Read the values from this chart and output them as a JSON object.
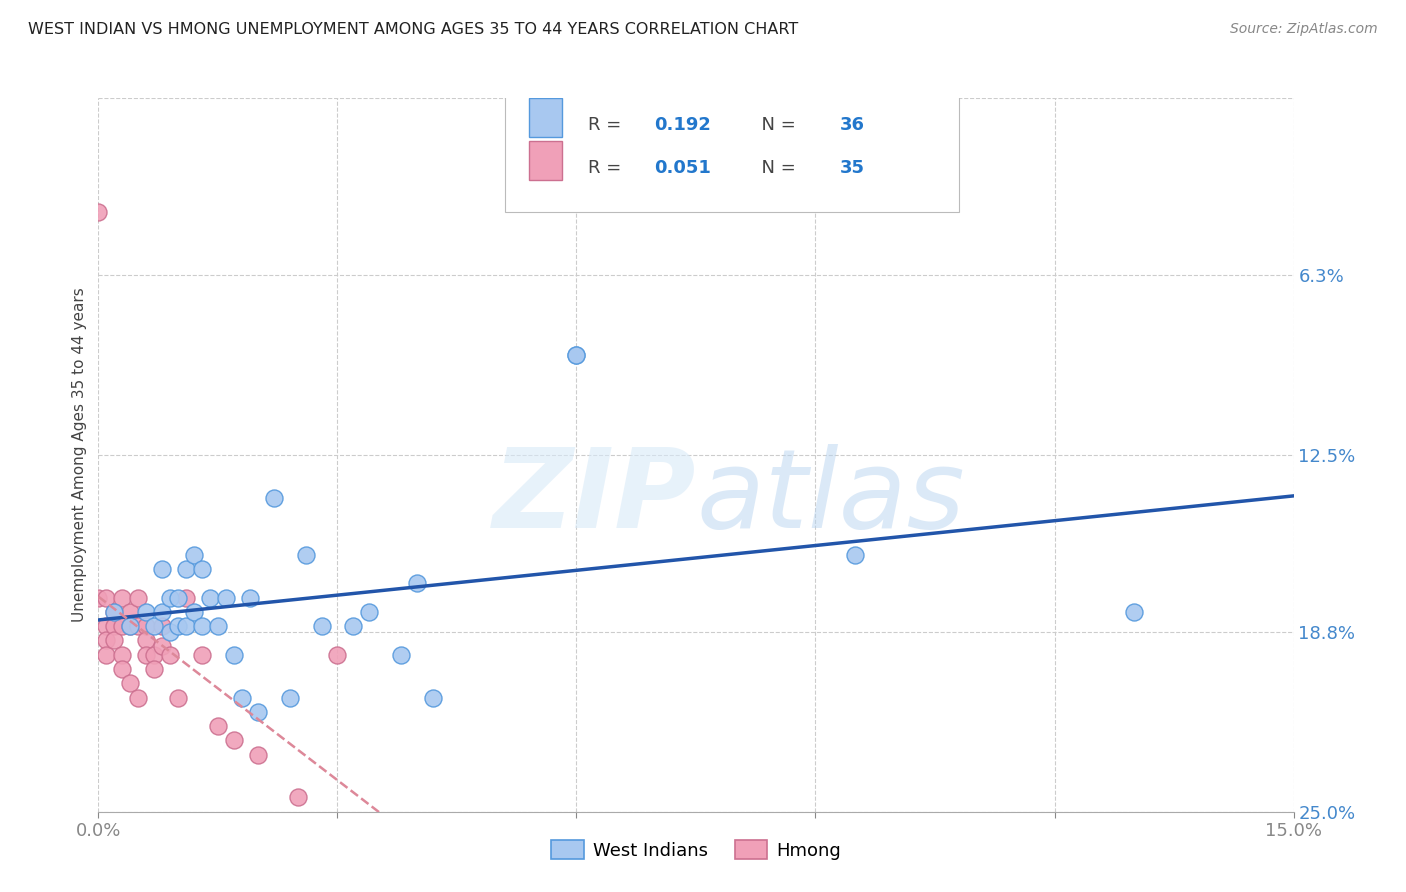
{
  "title": "WEST INDIAN VS HMONG UNEMPLOYMENT AMONG AGES 35 TO 44 YEARS CORRELATION CHART",
  "source": "Source: ZipAtlas.com",
  "ylabel": "Unemployment Among Ages 35 to 44 years",
  "xlim": [
    0.0,
    0.15
  ],
  "ylim": [
    0.0,
    0.25
  ],
  "color_west_indian": "#a8c8f0",
  "color_west_indian_edge": "#5599dd",
  "color_hmong": "#f0a0b8",
  "color_hmong_edge": "#cc7090",
  "color_line_west_indian": "#2255aa",
  "color_line_hmong": "#dd8899",
  "watermark_zip": "ZIP",
  "watermark_atlas": "atlas",
  "west_indian_x": [
    0.002,
    0.004,
    0.006,
    0.007,
    0.008,
    0.008,
    0.009,
    0.009,
    0.01,
    0.01,
    0.011,
    0.011,
    0.012,
    0.012,
    0.013,
    0.013,
    0.014,
    0.015,
    0.016,
    0.017,
    0.018,
    0.019,
    0.02,
    0.022,
    0.024,
    0.026,
    0.028,
    0.032,
    0.034,
    0.038,
    0.04,
    0.042,
    0.06,
    0.06,
    0.095,
    0.13
  ],
  "west_indian_y": [
    0.07,
    0.065,
    0.07,
    0.065,
    0.07,
    0.085,
    0.063,
    0.075,
    0.065,
    0.075,
    0.065,
    0.085,
    0.07,
    0.09,
    0.065,
    0.085,
    0.075,
    0.065,
    0.075,
    0.055,
    0.04,
    0.075,
    0.035,
    0.11,
    0.04,
    0.09,
    0.065,
    0.065,
    0.07,
    0.055,
    0.08,
    0.04,
    0.16,
    0.16,
    0.09,
    0.07
  ],
  "hmong_x": [
    0.0,
    0.0,
    0.001,
    0.001,
    0.001,
    0.001,
    0.002,
    0.002,
    0.002,
    0.003,
    0.003,
    0.003,
    0.003,
    0.004,
    0.004,
    0.004,
    0.005,
    0.005,
    0.005,
    0.006,
    0.006,
    0.006,
    0.007,
    0.007,
    0.008,
    0.008,
    0.009,
    0.01,
    0.011,
    0.013,
    0.015,
    0.017,
    0.02,
    0.025,
    0.03
  ],
  "hmong_y": [
    0.21,
    0.075,
    0.075,
    0.065,
    0.06,
    0.055,
    0.07,
    0.065,
    0.06,
    0.075,
    0.065,
    0.055,
    0.05,
    0.07,
    0.065,
    0.045,
    0.075,
    0.065,
    0.04,
    0.065,
    0.06,
    0.055,
    0.055,
    0.05,
    0.065,
    0.058,
    0.055,
    0.04,
    0.075,
    0.055,
    0.03,
    0.025,
    0.02,
    0.005,
    0.055
  ]
}
